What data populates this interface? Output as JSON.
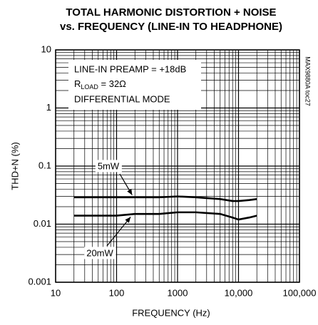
{
  "chart_data": {
    "type": "line",
    "title": [
      "TOTAL HARMONIC DISTORTION + NOISE",
      "vs. FREQUENCY (LINE-IN TO HEADPHONE)"
    ],
    "x_label": "FREQUENCY (Hz)",
    "y_label": "THD+N (%)",
    "annotation_lines": [
      "LINE-IN PREAMP = +18dB",
      [
        "R",
        "LOAD",
        " = 32Ω"
      ],
      "DIFFERENTIAL MODE"
    ],
    "side_note": "MAX9880A toc27",
    "x": [
      20,
      50,
      100,
      200,
      500,
      1000,
      2000,
      5000,
      8000,
      10000,
      15000,
      20000
    ],
    "series": [
      {
        "name": "5mW",
        "color": "#000000",
        "values": [
          0.029,
          0.029,
          0.029,
          0.029,
          0.029,
          0.03,
          0.029,
          0.027,
          0.025,
          0.025,
          0.026,
          0.027
        ]
      },
      {
        "name": "20mW",
        "color": "#000000",
        "values": [
          0.014,
          0.014,
          0.014,
          0.015,
          0.015,
          0.016,
          0.016,
          0.015,
          0.013,
          0.012,
          0.013,
          0.014
        ]
      }
    ],
    "xlim": [
      10,
      100000
    ],
    "ylim": [
      0.001,
      10
    ],
    "xticks": [
      10,
      100,
      1000,
      {
        "value": 10000,
        "label": "10,000"
      },
      {
        "value": 100000,
        "label": "100,000"
      }
    ],
    "yticks": [
      0.001,
      0.01,
      0.1,
      1,
      10
    ],
    "log_x": true,
    "log_y": true,
    "grid": true,
    "minor_grid": true
  }
}
